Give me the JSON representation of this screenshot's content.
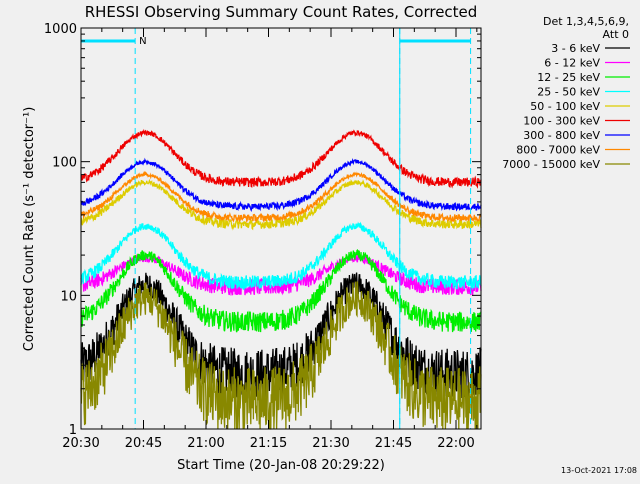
{
  "chart_data": {
    "type": "line",
    "title": "RHESSI Observing Summary Count Rates, Corrected",
    "xlabel": "Start Time (20-Jan-08 20:29:22)",
    "ylabel": "Corrected Count Rate (s⁻¹ detector⁻¹)",
    "x_ticks": [
      "20:30",
      "20:45",
      "21:00",
      "21:15",
      "21:30",
      "21:45",
      "22:00"
    ],
    "x_tick_minutes": [
      0,
      15,
      30,
      45,
      60,
      75,
      90
    ],
    "xlim_minutes": [
      0,
      96
    ],
    "y_ticks": [
      "1",
      "10",
      "100",
      "1000"
    ],
    "y_tick_values": [
      1,
      10,
      100,
      1000
    ],
    "ylim": [
      1,
      1000
    ],
    "yscale": "log",
    "legend_header": [
      "Det 1,3,4,5,6,9,",
      "Att 0"
    ],
    "legend_position": "right",
    "flag_label": "N",
    "flag_color": "#00e0ff",
    "night_marks_minutes": [
      13,
      76.5,
      93.5
    ],
    "flag_segments_minutes": [
      [
        0,
        13
      ],
      [
        76.5,
        93.5
      ]
    ],
    "footer_date": "13-Oct-2021 17:08",
    "orbit_minutes": 50.5,
    "peak_minute": 15.5,
    "series": [
      {
        "name": "3 - 6 keV",
        "color": "#000000",
        "base": 2.6,
        "peak": 12,
        "noise": 0.22,
        "min": 1
      },
      {
        "name": "6 - 12 keV",
        "color": "#ff00ff",
        "base": 11.5,
        "peak": 19,
        "noise": 0.07,
        "min": 1
      },
      {
        "name": "12 - 25 keV",
        "color": "#00ee00",
        "base": 6.3,
        "peak": 20,
        "noise": 0.09,
        "min": 1
      },
      {
        "name": "25 - 50 keV",
        "color": "#00ffff",
        "base": 12.5,
        "peak": 33,
        "noise": 0.06,
        "min": 1
      },
      {
        "name": "50 - 100 keV",
        "color": "#ddcc00",
        "base": 34,
        "peak": 70,
        "noise": 0.04,
        "min": 1
      },
      {
        "name": "100 - 300 keV",
        "color": "#ee0000",
        "base": 70,
        "peak": 165,
        "noise": 0.04,
        "min": 1
      },
      {
        "name": "300 - 800 keV",
        "color": "#0000ff",
        "base": 46,
        "peak": 100,
        "noise": 0.03,
        "min": 1
      },
      {
        "name": "800 - 7000 keV",
        "color": "#ff8800",
        "base": 38,
        "peak": 80,
        "noise": 0.03,
        "min": 1
      },
      {
        "name": "7000 - 15000 keV",
        "color": "#888800",
        "base": 1.6,
        "peak": 9.5,
        "noise": 0.3,
        "min": 1
      }
    ]
  }
}
